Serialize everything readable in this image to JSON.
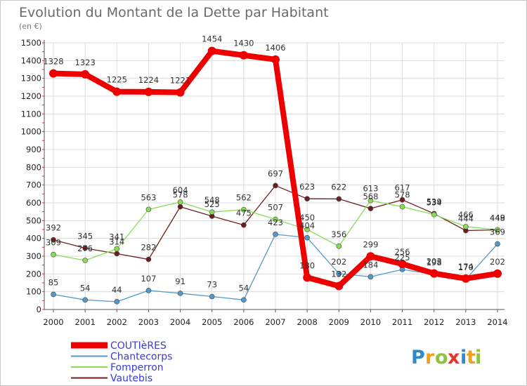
{
  "chart_data": {
    "type": "line",
    "title": "Evolution du Montant de la Dette par Habitant",
    "subtitle": "(en €)",
    "x": [
      "2000",
      "2001",
      "2002",
      "2003",
      "2004",
      "2005",
      "2006",
      "2007",
      "2008",
      "2009",
      "2010",
      "2011",
      "2012",
      "2013",
      "2014"
    ],
    "ylim": [
      0,
      1500
    ],
    "yticks": [
      0,
      100,
      200,
      300,
      400,
      500,
      600,
      700,
      800,
      900,
      1000,
      1100,
      1200,
      1300,
      1400,
      1500
    ],
    "grid": true,
    "legend_position": "bottom-left",
    "series": [
      {
        "name": "Vautebis",
        "color": "#6b1f1f",
        "values": [
          392,
          345,
          314,
          282,
          578,
          525,
          475,
          697,
          623,
          622,
          568,
          617,
          539,
          444,
          448
        ]
      },
      {
        "name": "Fomperron",
        "color": "#88dd55",
        "values": [
          309,
          276,
          341,
          563,
          604,
          548,
          562,
          507,
          450,
          356,
          613,
          578,
          534,
          466,
          449
        ]
      },
      {
        "name": "Chantecorps",
        "color": "#5599cc",
        "values": [
          85,
          54,
          44,
          107,
          91,
          73,
          54,
          423,
          404,
          202,
          184,
          225,
          198,
          170,
          369
        ]
      },
      {
        "name": "COUTIèRES",
        "color": "#ee0000",
        "values": [
          1328,
          1323,
          1225,
          1224,
          1221,
          1454,
          1430,
          1406,
          180,
          132,
          299,
          256,
          203,
          174,
          202
        ]
      }
    ]
  },
  "legend": {
    "items": [
      {
        "label": "COUTIèRES",
        "color": "#ee0000"
      },
      {
        "label": "Chantecorps",
        "color": "#5599cc"
      },
      {
        "label": "Fomperron",
        "color": "#88dd55"
      },
      {
        "label": "Vautebis",
        "color": "#6b1f1f"
      }
    ]
  },
  "logo": {
    "letters": [
      {
        "char": "P",
        "color": "#2e8bc9"
      },
      {
        "char": "r",
        "color": "#f2a21a"
      },
      {
        "char": "o",
        "color": "#8fc33a"
      },
      {
        "char": "x",
        "color": "#e8342a"
      },
      {
        "char": "i",
        "color": "#2e8bc9"
      },
      {
        "char": "t",
        "color": "#f2a21a"
      },
      {
        "char": "i",
        "color": "#8fc33a"
      }
    ]
  }
}
